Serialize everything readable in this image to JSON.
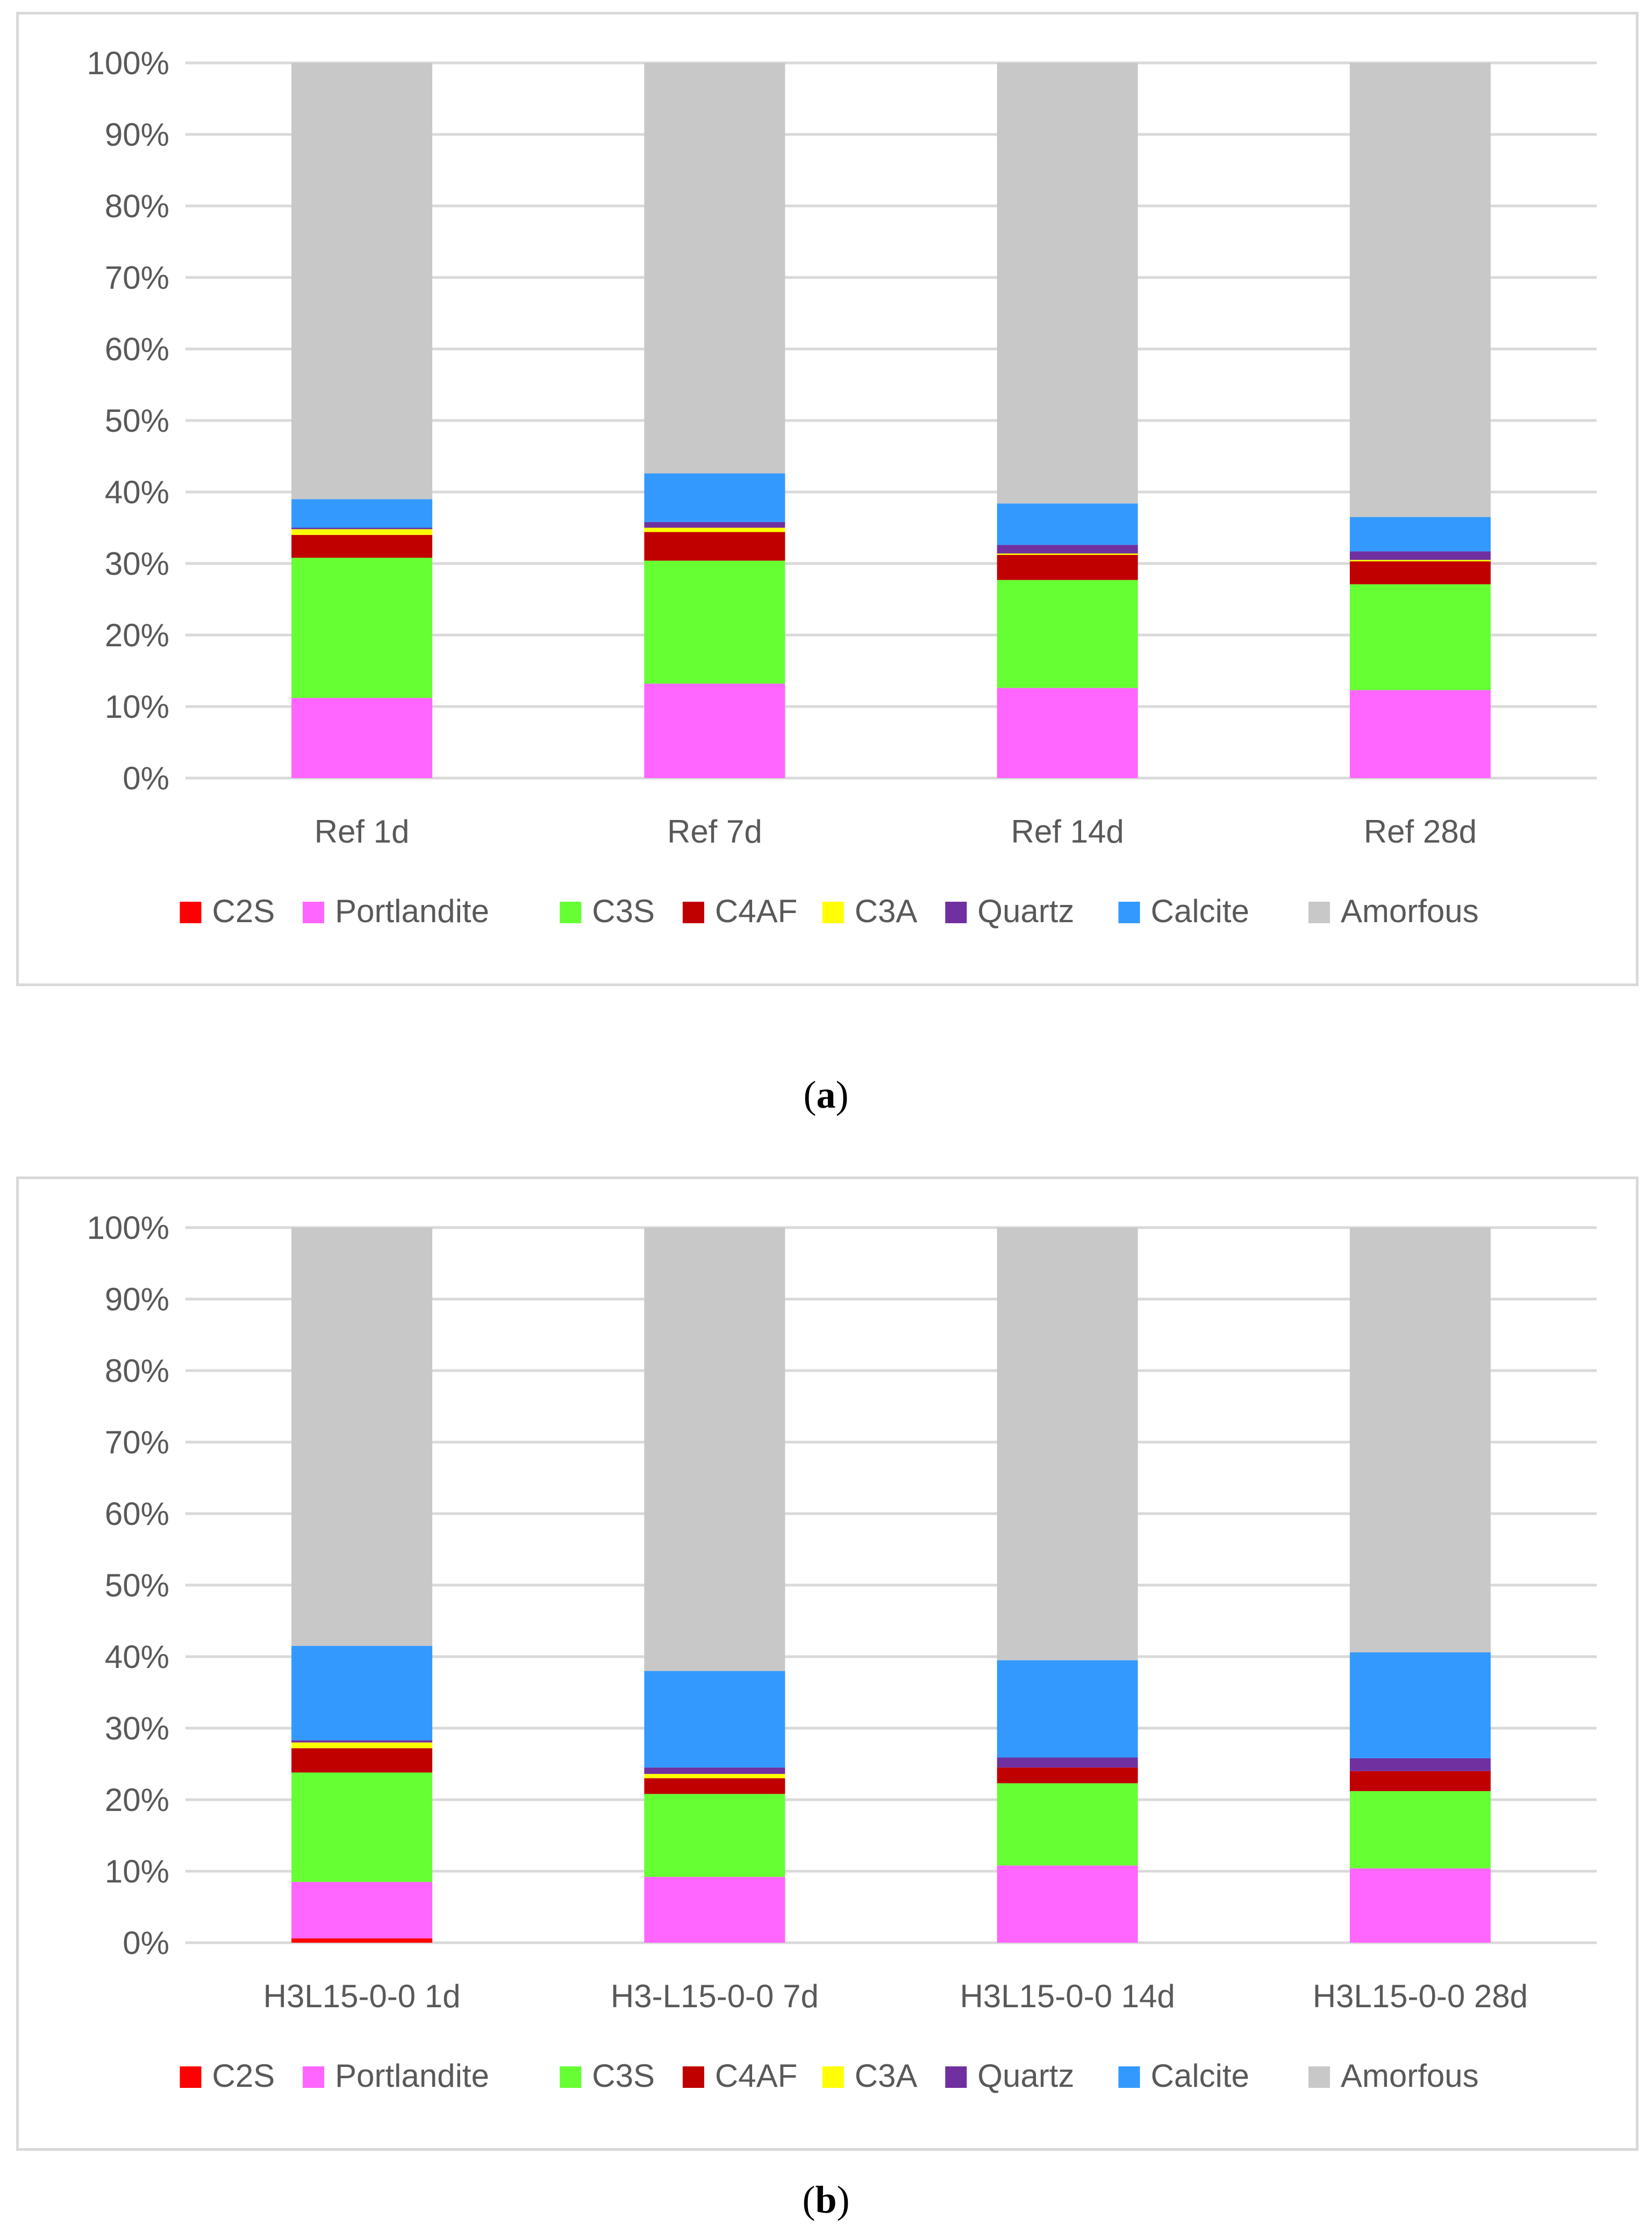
{
  "chart_data": [
    {
      "type": "bar",
      "stacked": true,
      "percent_axis": true,
      "caption_letter": "a",
      "categories": [
        "Ref 1d",
        "Ref 7d",
        "Ref 14d",
        "Ref 28d"
      ],
      "ylim": [
        0,
        100
      ],
      "yticks": [
        "0%",
        "10%",
        "20%",
        "30%",
        "40%",
        "50%",
        "60%",
        "70%",
        "80%",
        "90%",
        "100%"
      ],
      "grid": true,
      "legend_position": "bottom",
      "series": [
        {
          "name": "C2S",
          "color": "#ff0000",
          "values": [
            0,
            0,
            0,
            0
          ]
        },
        {
          "name": "Portlandite",
          "color": "#ff66ff",
          "values": [
            11.2,
            13.2,
            12.6,
            12.3
          ]
        },
        {
          "name": "C3S",
          "color": "#66ff33",
          "values": [
            19.6,
            17.2,
            15.1,
            14.8
          ]
        },
        {
          "name": "C4AF",
          "color": "#c00000",
          "values": [
            3.2,
            4.0,
            3.5,
            3.2
          ]
        },
        {
          "name": "C3A",
          "color": "#ffff00",
          "values": [
            0.8,
            0.6,
            0.2,
            0.2
          ]
        },
        {
          "name": "Quartz",
          "color": "#7030a0",
          "values": [
            0.2,
            0.8,
            1.2,
            1.2
          ]
        },
        {
          "name": "Calcite",
          "color": "#3399ff",
          "values": [
            4.0,
            6.8,
            5.8,
            4.8
          ]
        },
        {
          "name": "Amorfous",
          "color": "#c8c8c8",
          "values": [
            61.0,
            57.4,
            61.6,
            63.5
          ]
        }
      ]
    },
    {
      "type": "bar",
      "stacked": true,
      "percent_axis": true,
      "caption_letter": "b",
      "categories": [
        "H3L15-0-0 1d",
        "H3-L15-0-0 7d",
        "H3L15-0-0 14d",
        "H3L15-0-0 28d"
      ],
      "ylim": [
        0,
        100
      ],
      "yticks": [
        "0%",
        "10%",
        "20%",
        "30%",
        "40%",
        "50%",
        "60%",
        "70%",
        "80%",
        "90%",
        "100%"
      ],
      "grid": true,
      "legend_position": "bottom",
      "series": [
        {
          "name": "C2S",
          "color": "#ff0000",
          "values": [
            0.6,
            0,
            0,
            0
          ]
        },
        {
          "name": "Portlandite",
          "color": "#ff66ff",
          "values": [
            7.9,
            9.2,
            10.8,
            10.4
          ]
        },
        {
          "name": "C3S",
          "color": "#66ff33",
          "values": [
            15.3,
            11.6,
            11.5,
            10.8
          ]
        },
        {
          "name": "C4AF",
          "color": "#c00000",
          "values": [
            3.4,
            2.2,
            2.2,
            2.8
          ]
        },
        {
          "name": "C3A",
          "color": "#ffff00",
          "values": [
            0.8,
            0.6,
            0,
            0
          ]
        },
        {
          "name": "Quartz",
          "color": "#7030a0",
          "values": [
            0.3,
            0.9,
            1.4,
            1.8
          ]
        },
        {
          "name": "Calcite",
          "color": "#3399ff",
          "values": [
            13.2,
            13.5,
            13.6,
            14.8
          ]
        },
        {
          "name": "Amorfous",
          "color": "#c8c8c8",
          "values": [
            58.5,
            62.0,
            60.5,
            59.4
          ]
        }
      ]
    }
  ]
}
